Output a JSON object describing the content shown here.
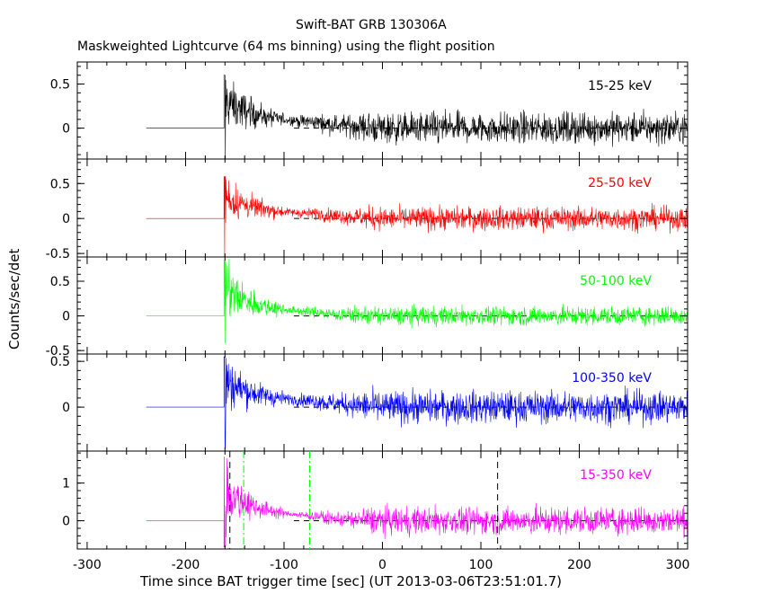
{
  "header": {
    "title": "Swift-BAT GRB 130306A",
    "subtitle": "Maskweighted Lightcurve (64 ms binning) using the flight position"
  },
  "axes": {
    "xlabel": "Time since BAT trigger time [sec] (UT 2013-03-06T23:51:01.7)",
    "ylabel": "Counts/sec/det"
  },
  "chart_data": {
    "type": "line",
    "xlim": [
      -310,
      310
    ],
    "x_ticks": [
      -300,
      -200,
      -100,
      0,
      100,
      200,
      300
    ],
    "bin_seconds": 0.064,
    "data_start": -240,
    "burst_onset": -161,
    "panels": [
      {
        "name": "15-25 keV",
        "color": "#000000",
        "ylim": [
          -0.35,
          0.75
        ],
        "y_ticks": [
          0,
          0.5
        ],
        "y_tick_labels": [
          "0",
          "0.5"
        ],
        "peak": 0.6,
        "tail_min": 0.05,
        "noise_late": 0.17,
        "trough": -0.4
      },
      {
        "name": "25-50 keV",
        "color": "#ff0000",
        "ylim": [
          -0.55,
          0.85
        ],
        "y_ticks": [
          -0.5,
          0,
          0.5
        ],
        "y_tick_labels": [
          "-0.5",
          "0",
          "0.5"
        ],
        "peak": 0.6,
        "tail_min": 0.05,
        "noise_late": 0.16,
        "trough": -0.55
      },
      {
        "name": "50-100 keV",
        "color": "#00ff00",
        "ylim": [
          -0.55,
          0.85
        ],
        "y_ticks": [
          -0.5,
          0,
          0.5
        ],
        "y_tick_labels": [
          "-0.5",
          "0",
          "0.5"
        ],
        "peak": 0.8,
        "tail_min": 0.03,
        "noise_late": 0.13,
        "trough": -0.4
      },
      {
        "name": "100-350 keV",
        "color": "#0000ff",
        "ylim": [
          -0.48,
          0.58
        ],
        "y_ticks": [
          0,
          0.5
        ],
        "y_tick_labels": [
          "0",
          "0.5"
        ],
        "peak": 0.55,
        "tail_min": 0.05,
        "noise_late": 0.17,
        "trough": -0.45
      },
      {
        "name": "15-350 keV",
        "color": "#ff00ff",
        "ylim": [
          -0.75,
          1.85
        ],
        "y_ticks": [
          0,
          1
        ],
        "y_tick_labels": [
          "0",
          "1"
        ],
        "peak": 1.7,
        "tail_min": 0.07,
        "noise_late": 0.35,
        "trough": -0.7
      }
    ],
    "markers": [
      {
        "x": -155,
        "color": "#000000",
        "style": "dashed"
      },
      {
        "x": -141,
        "color": "#00ff00",
        "style": "dashdot"
      },
      {
        "x": -74,
        "color": "#00ff00",
        "style": "dashdot"
      },
      {
        "x": 117,
        "color": "#000000",
        "style": "dashed"
      }
    ],
    "zero_line_from": -90
  }
}
